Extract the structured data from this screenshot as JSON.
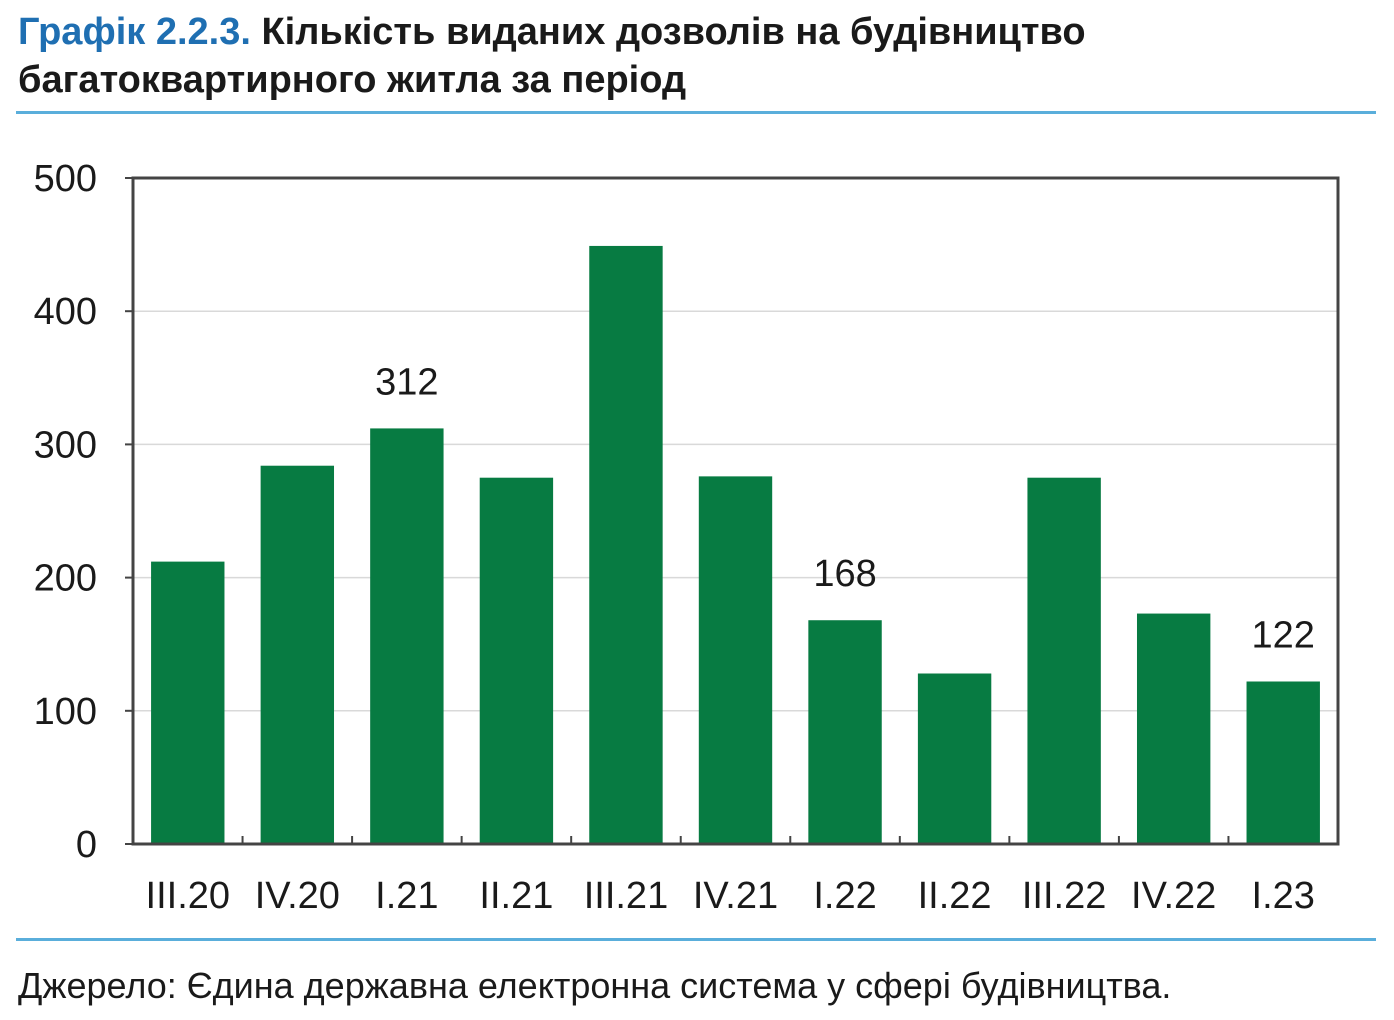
{
  "header": {
    "prefix": "Графік 2.2.3.",
    "title_line1": "Кількість виданих дозволів на будівництво",
    "title_line2": "багатоквартирного житла за період"
  },
  "source": "Джерело: Єдина державна електронна система у сфері будівництва.",
  "colors": {
    "bar": "#077b42",
    "accent_prefix": "#1f6fb2",
    "rule": "#5aaedb",
    "grid": "#d9d9d9",
    "axis": "#444444"
  },
  "chart_data": {
    "type": "bar",
    "categories": [
      "III.20",
      "IV.20",
      "I.21",
      "II.21",
      "III.21",
      "IV.21",
      "I.22",
      "II.22",
      "III.22",
      "IV.22",
      "I.23"
    ],
    "values": [
      212,
      284,
      312,
      275,
      449,
      276,
      168,
      128,
      275,
      173,
      122
    ],
    "data_labels": [
      null,
      null,
      "312",
      null,
      null,
      null,
      "168",
      null,
      null,
      null,
      "122"
    ],
    "yticks": [
      0,
      100,
      200,
      300,
      400,
      500
    ],
    "ylim": [
      0,
      500
    ],
    "grid": true,
    "legend": "none"
  }
}
